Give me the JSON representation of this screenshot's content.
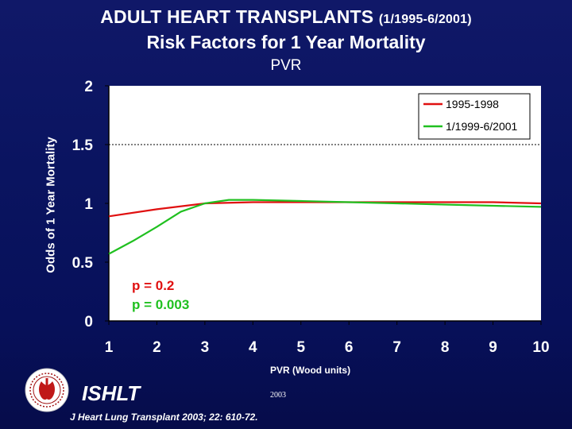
{
  "header": {
    "title_main": "ADULT HEART TRANSPLANTS ",
    "title_range": "(1/1995-6/2001)",
    "title_line2": "Risk Factors for 1 Year Mortality",
    "subtitle": "PVR"
  },
  "footer": {
    "org": "ISHLT",
    "year": "2003",
    "citation": "J Heart Lung Transplant 2003; 22: 610-72."
  },
  "colors": {
    "plot_bg": "#ffffff",
    "series1": "#e01010",
    "series2": "#20c020",
    "tick_text": "#ffffff"
  },
  "chart_data": {
    "type": "line",
    "title": "PVR",
    "xlabel": "PVR (Wood units)",
    "ylabel": "Odds of 1 Year Mortality",
    "xlim": [
      1,
      10
    ],
    "ylim": [
      0,
      2
    ],
    "x_ticks": [
      "1",
      "2",
      "3",
      "4",
      "5",
      "6",
      "7",
      "8",
      "9",
      "10"
    ],
    "y_ticks": [
      "0",
      "0.5",
      "1",
      "1.5",
      "2"
    ],
    "reference_line": 1.5,
    "legend_position": "top-right",
    "series": [
      {
        "name": "1995-1998",
        "color": "#e01010",
        "x": [
          1,
          2,
          3,
          4,
          5,
          6,
          7,
          8,
          9,
          10
        ],
        "y": [
          0.89,
          0.95,
          1.0,
          1.01,
          1.01,
          1.01,
          1.01,
          1.01,
          1.01,
          1.0
        ]
      },
      {
        "name": "1/1999-6/2001",
        "color": "#20c020",
        "x": [
          1,
          1.5,
          2,
          2.5,
          3,
          3.5,
          4,
          5,
          6,
          7,
          8,
          9,
          10
        ],
        "y": [
          0.57,
          0.68,
          0.8,
          0.93,
          1.0,
          1.03,
          1.03,
          1.02,
          1.01,
          1.0,
          0.99,
          0.98,
          0.97
        ]
      }
    ],
    "annotations": [
      {
        "text": "p = 0.2",
        "color": "#e01010"
      },
      {
        "text": "p = 0.003",
        "color": "#20c020"
      }
    ]
  }
}
